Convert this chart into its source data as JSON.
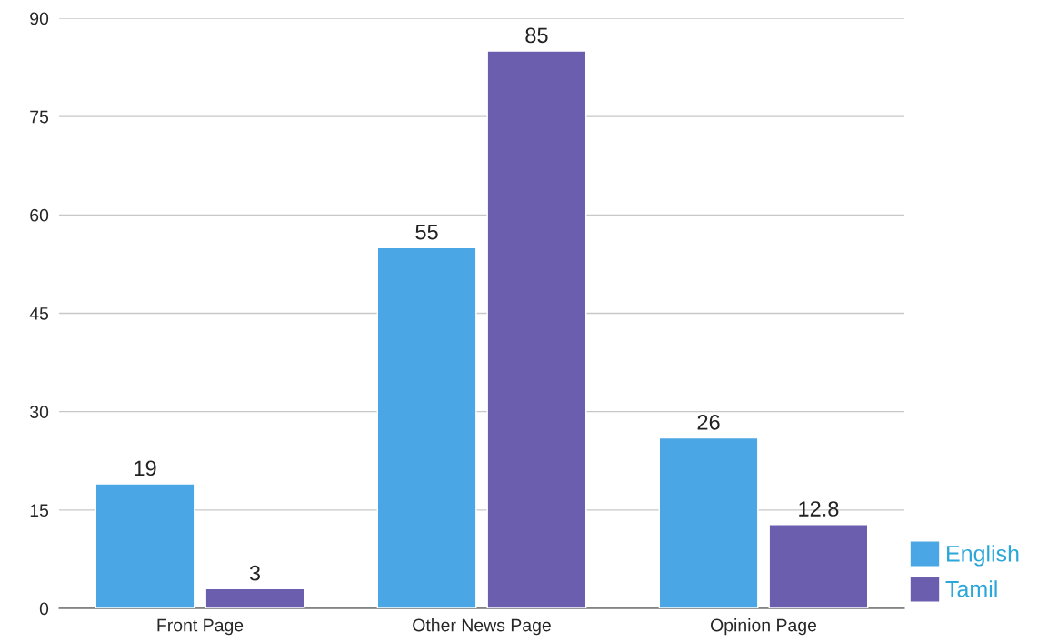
{
  "chart_data": {
    "type": "bar",
    "categories": [
      "Front Page",
      "Other News Page",
      "Opinion Page"
    ],
    "series": [
      {
        "name": "English",
        "color": "#4aa6e4",
        "values": [
          19,
          55,
          26
        ]
      },
      {
        "name": "Tamil",
        "color": "#6b5eae",
        "values": [
          3,
          85,
          12.8
        ]
      }
    ],
    "ylim": [
      0,
      90
    ],
    "yticks": [
      0,
      15,
      30,
      45,
      60,
      75,
      90
    ],
    "grid": "y",
    "legend": "bottom right",
    "data_labels": true
  }
}
